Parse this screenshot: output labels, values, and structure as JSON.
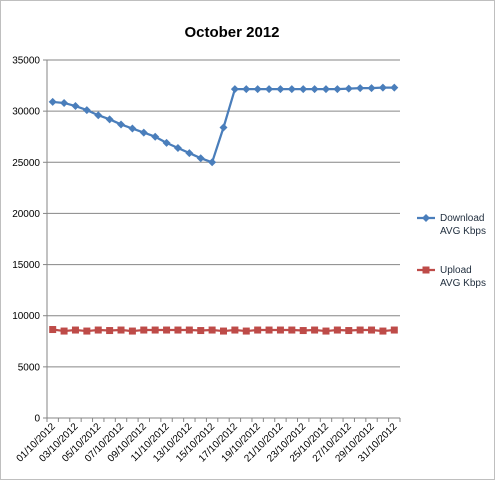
{
  "chart_data": {
    "type": "line",
    "title": "October 2012",
    "xlabel": "",
    "ylabel": "",
    "ylim": [
      0,
      35000
    ],
    "yticks": [
      0,
      5000,
      10000,
      15000,
      20000,
      25000,
      30000,
      35000
    ],
    "grid": true,
    "legend_position": "right",
    "x": [
      "01/10/2012",
      "02/10/2012",
      "03/10/2012",
      "04/10/2012",
      "05/10/2012",
      "06/10/2012",
      "07/10/2012",
      "08/10/2012",
      "09/10/2012",
      "10/10/2012",
      "11/10/2012",
      "12/10/2012",
      "13/10/2012",
      "14/10/2012",
      "15/10/2012",
      "16/10/2012",
      "17/10/2012",
      "18/10/2012",
      "19/10/2012",
      "20/10/2012",
      "21/10/2012",
      "22/10/2012",
      "23/10/2012",
      "24/10/2012",
      "25/10/2012",
      "26/10/2012",
      "27/10/2012",
      "28/10/2012",
      "29/10/2012",
      "30/10/2012",
      "31/10/2012"
    ],
    "xtick_labels_shown": [
      "01/10/2012",
      "03/10/2012",
      "05/10/2012",
      "07/10/2012",
      "09/10/2012",
      "11/10/2012",
      "13/10/2012",
      "15/10/2012",
      "17/10/2012",
      "19/10/2012",
      "21/10/2012",
      "23/10/2012",
      "25/10/2012",
      "27/10/2012",
      "29/10/2012",
      "31/10/2012"
    ],
    "series": [
      {
        "name": "Download AVG Kbps",
        "legend_lines": [
          "Download",
          "AVG Kbps"
        ],
        "color": "#4a7ebb",
        "marker": "diamond",
        "values": [
          30900,
          30800,
          30500,
          30100,
          29600,
          29200,
          28700,
          28300,
          27900,
          27500,
          26900,
          26400,
          25900,
          25400,
          25000,
          28400,
          32150,
          32150,
          32150,
          32150,
          32150,
          32150,
          32150,
          32150,
          32150,
          32150,
          32200,
          32250,
          32250,
          32300,
          32300
        ]
      },
      {
        "name": "Upload AVG Kbps",
        "legend_lines": [
          "Upload",
          "AVG Kbps"
        ],
        "color": "#be4b48",
        "marker": "square",
        "values": [
          8650,
          8500,
          8600,
          8500,
          8600,
          8550,
          8600,
          8500,
          8600,
          8600,
          8600,
          8600,
          8600,
          8550,
          8600,
          8500,
          8600,
          8500,
          8600,
          8600,
          8600,
          8600,
          8550,
          8600,
          8500,
          8600,
          8550,
          8600,
          8600,
          8500,
          8600
        ]
      }
    ]
  }
}
